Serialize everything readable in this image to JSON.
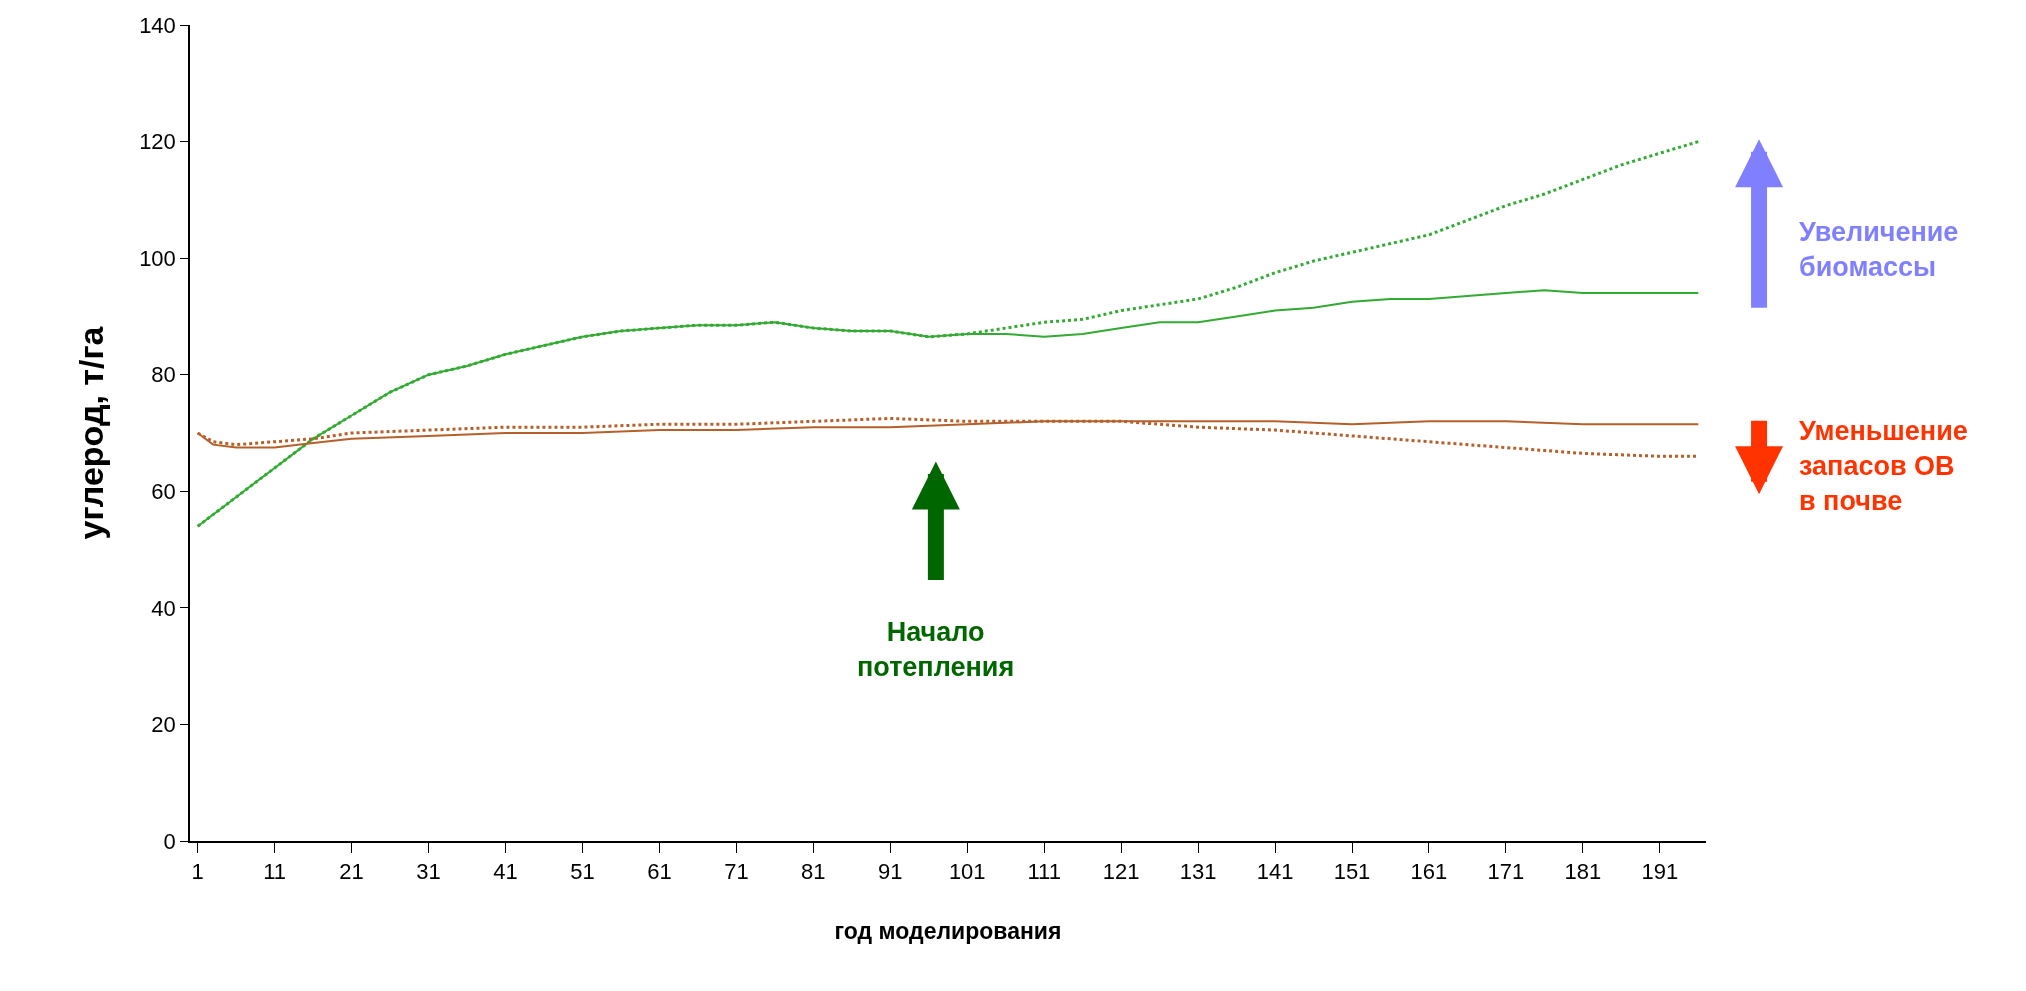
{
  "chart_data": {
    "type": "line",
    "xlabel": "год моделирования",
    "ylabel": "углерод, т/га",
    "xlim": [
      0,
      197
    ],
    "ylim": [
      0,
      140
    ],
    "xticks": [
      1,
      11,
      21,
      31,
      41,
      51,
      61,
      71,
      81,
      91,
      101,
      111,
      121,
      131,
      141,
      151,
      161,
      171,
      181,
      191
    ],
    "yticks": [
      0,
      20,
      40,
      60,
      80,
      100,
      120,
      140
    ],
    "marker": "none",
    "series": [
      {
        "color": "#33aa33",
        "line_style": "solid",
        "x": [
          1,
          5,
          11,
          16,
          21,
          26,
          31,
          36,
          41,
          46,
          51,
          56,
          61,
          66,
          71,
          76,
          81,
          86,
          91,
          96,
          101,
          106,
          111,
          116,
          121,
          126,
          131,
          136,
          141,
          146,
          151,
          156,
          161,
          166,
          171,
          176,
          181,
          186,
          191,
          196
        ],
        "values": [
          54,
          58,
          64,
          69,
          73,
          77,
          80,
          81.5,
          83.5,
          85,
          86.5,
          87.5,
          88,
          88.5,
          88.5,
          89,
          88,
          87.5,
          87.5,
          86.5,
          87,
          87,
          86.5,
          87,
          88,
          89,
          89,
          90,
          91,
          91.5,
          92.5,
          93,
          93,
          93.5,
          94,
          94.5,
          94,
          94,
          94,
          94
        ]
      },
      {
        "color": "#33aa33",
        "line_style": "dotted",
        "x": [
          1,
          5,
          11,
          16,
          21,
          26,
          31,
          36,
          41,
          46,
          51,
          56,
          61,
          66,
          71,
          76,
          81,
          86,
          91,
          96,
          101,
          106,
          111,
          116,
          121,
          126,
          131,
          136,
          141,
          146,
          151,
          156,
          161,
          166,
          171,
          176,
          181,
          186,
          191,
          196
        ],
        "values": [
          54,
          58,
          64,
          69,
          73,
          77,
          80,
          81.5,
          83.5,
          85,
          86.5,
          87.5,
          88,
          88.5,
          88.5,
          89,
          88,
          87.5,
          87.5,
          86.5,
          87,
          88,
          89,
          89.5,
          91,
          92,
          93,
          95,
          97.5,
          99.5,
          101,
          102.5,
          104,
          106.5,
          109,
          111,
          113.5,
          116,
          118,
          120
        ]
      },
      {
        "color": "#b5602a",
        "line_style": "solid",
        "x": [
          1,
          3,
          6,
          11,
          16,
          21,
          31,
          41,
          51,
          61,
          71,
          81,
          91,
          101,
          111,
          121,
          131,
          141,
          151,
          161,
          171,
          181,
          191,
          196
        ],
        "values": [
          70,
          68,
          67.5,
          67.5,
          68.3,
          69,
          69.5,
          70,
          70,
          70.5,
          70.5,
          71,
          71,
          71.5,
          72,
          72,
          72,
          72,
          71.5,
          72,
          72,
          71.5,
          71.5,
          71.5
        ]
      },
      {
        "color": "#b5602a",
        "line_style": "dotted",
        "x": [
          1,
          3,
          6,
          11,
          16,
          21,
          31,
          41,
          51,
          61,
          71,
          81,
          91,
          101,
          111,
          121,
          131,
          141,
          151,
          161,
          171,
          181,
          191,
          196
        ],
        "values": [
          70,
          68.5,
          68,
          68.5,
          69,
          70,
          70.5,
          71,
          71,
          71.5,
          71.5,
          72,
          72.5,
          72,
          72,
          72,
          71,
          70.5,
          69.5,
          68.5,
          67.5,
          66.5,
          66,
          66
        ]
      }
    ],
    "annotations": [
      "Начало\nпотепления",
      "Увеличение\nбиомассы",
      "Уменьшение\nзапасов ОВ\nв почве"
    ]
  }
}
